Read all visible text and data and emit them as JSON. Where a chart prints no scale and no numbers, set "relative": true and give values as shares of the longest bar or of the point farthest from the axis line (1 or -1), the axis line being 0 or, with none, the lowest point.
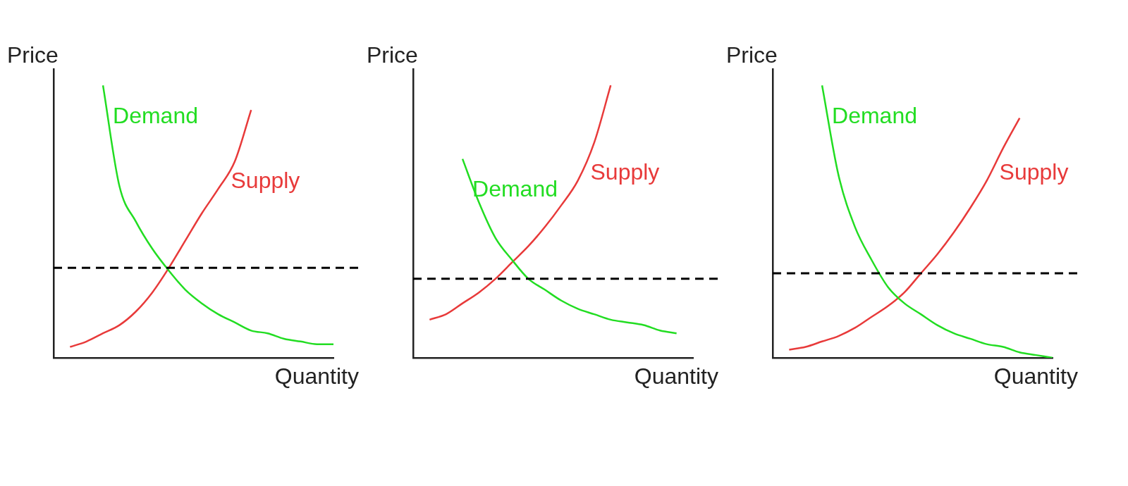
{
  "chart_data": [
    {
      "type": "line",
      "relative": true,
      "ylabel": "Price",
      "xlabel": "Quantity",
      "tick_labels": false,
      "categories": [
        null,
        null,
        null,
        null,
        null,
        null,
        null,
        null,
        null,
        null,
        null,
        null,
        null,
        null,
        null,
        null,
        null,
        null
      ],
      "series": [
        {
          "name": "Demand",
          "color": "#22dd22",
          "values": [
            null,
            null,
            null,
            1.0,
            0.63,
            0.5,
            0.4,
            0.32,
            0.25,
            0.2,
            0.16,
            0.13,
            0.1,
            0.09,
            0.07,
            0.06,
            0.05,
            0.05
          ]
        },
        {
          "name": "Supply",
          "color": "#e83a3a",
          "values": [
            null,
            0.04,
            0.06,
            0.09,
            0.12,
            0.17,
            0.24,
            0.33,
            0.43,
            0.53,
            0.62,
            0.72,
            0.91,
            null,
            null,
            null,
            null,
            null
          ]
        }
      ],
      "ref_lines": [
        {
          "axis": "y",
          "value": 0.33,
          "color": "#000000",
          "line_style": "dashed"
        }
      ]
    },
    {
      "type": "line",
      "relative": true,
      "ylabel": "Price",
      "xlabel": "Quantity",
      "tick_labels": false,
      "categories": [
        null,
        null,
        null,
        null,
        null,
        null,
        null,
        null,
        null,
        null,
        null,
        null,
        null,
        null,
        null,
        null,
        null,
        null
      ],
      "series": [
        {
          "name": "Demand",
          "color": "#22dd22",
          "values": [
            null,
            null,
            null,
            0.73,
            0.57,
            0.44,
            0.36,
            0.29,
            0.25,
            0.21,
            0.18,
            0.16,
            0.14,
            0.13,
            0.12,
            0.1,
            0.09,
            null
          ]
        },
        {
          "name": "Supply",
          "color": "#e83a3a",
          "values": [
            null,
            0.14,
            0.16,
            0.2,
            0.24,
            0.29,
            0.35,
            0.41,
            0.48,
            0.56,
            0.65,
            0.79,
            1.0,
            null,
            null,
            null,
            null,
            null
          ]
        }
      ],
      "ref_lines": [
        {
          "axis": "y",
          "value": 0.29,
          "color": "#000000",
          "line_style": "dashed"
        }
      ]
    },
    {
      "type": "line",
      "relative": true,
      "ylabel": "Price",
      "xlabel": "Quantity",
      "tick_labels": false,
      "categories": [
        null,
        null,
        null,
        null,
        null,
        null,
        null,
        null,
        null,
        null,
        null,
        null,
        null,
        null,
        null,
        null,
        null,
        null
      ],
      "series": [
        {
          "name": "Demand",
          "color": "#22dd22",
          "values": [
            null,
            null,
            null,
            1.0,
            0.67,
            0.48,
            0.36,
            0.26,
            0.2,
            0.16,
            0.12,
            0.09,
            0.07,
            0.05,
            0.04,
            0.02,
            0.01,
            0.0
          ]
        },
        {
          "name": "Supply",
          "color": "#e83a3a",
          "values": [
            null,
            0.03,
            0.04,
            0.06,
            0.08,
            0.11,
            0.15,
            0.19,
            0.24,
            0.31,
            0.38,
            0.46,
            0.55,
            0.65,
            0.77,
            0.88,
            null,
            null
          ]
        }
      ],
      "ref_lines": [
        {
          "axis": "y",
          "value": 0.31,
          "color": "#000000",
          "line_style": "dashed"
        }
      ]
    }
  ]
}
